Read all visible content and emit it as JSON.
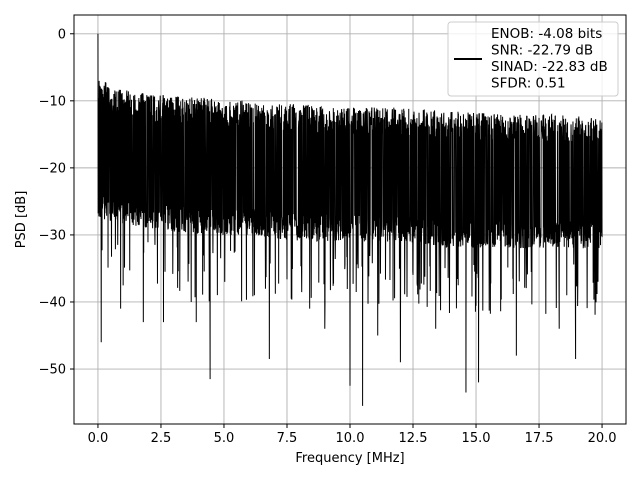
{
  "chart_data": {
    "type": "line",
    "title": "",
    "xlabel": "Frequency [MHz]",
    "ylabel": "PSD [dB]",
    "xlim": [
      -0.95,
      20.95
    ],
    "ylim": [
      -58.2,
      2.8
    ],
    "xticks": [
      0.0,
      2.5,
      5.0,
      7.5,
      10.0,
      12.5,
      15.0,
      17.5,
      20.0
    ],
    "xtick_labels": [
      "0.0",
      "2.5",
      "5.0",
      "7.5",
      "10.0",
      "12.5",
      "15.0",
      "17.5",
      "20.0"
    ],
    "yticks": [
      0,
      -10,
      -20,
      -30,
      -40,
      -50
    ],
    "ytick_labels": [
      "0",
      "−10",
      "−20",
      "−30",
      "−40",
      "−50"
    ],
    "grid": true,
    "legend_position": "top-right",
    "series": [
      {
        "name": "ENOB: -4.08 bits\nSNR: -22.79 dB\nSINAD: -22.83 dB\nSFDR: 0.51",
        "color": "#000000",
        "peak": {
          "x": 0.0,
          "y": 0.0
        },
        "envelope_approx": {
          "x": [
            0,
            0.5,
            2,
            4,
            6,
            8,
            10,
            12,
            14,
            16,
            18,
            20
          ],
          "upper": [
            -6,
            -8,
            -9,
            -9.5,
            -10,
            -10.5,
            -11,
            -11,
            -11.5,
            -12,
            -12,
            -12.5
          ],
          "lower": [
            -28,
            -28,
            -29,
            -30,
            -30,
            -31,
            -31,
            -31,
            -32,
            -32,
            -32,
            -32
          ]
        },
        "notable_minima": [
          {
            "x": 0.13,
            "y": -46
          },
          {
            "x": 0.9,
            "y": -41
          },
          {
            "x": 1.8,
            "y": -43
          },
          {
            "x": 2.6,
            "y": -43
          },
          {
            "x": 3.7,
            "y": -40
          },
          {
            "x": 3.9,
            "y": -43
          },
          {
            "x": 4.45,
            "y": -51.5
          },
          {
            "x": 6.8,
            "y": -48.5
          },
          {
            "x": 8.4,
            "y": -41
          },
          {
            "x": 9.0,
            "y": -44
          },
          {
            "x": 10.0,
            "y": -52.5
          },
          {
            "x": 10.5,
            "y": -55.5
          },
          {
            "x": 11.1,
            "y": -45
          },
          {
            "x": 12.0,
            "y": -49
          },
          {
            "x": 13.4,
            "y": -44
          },
          {
            "x": 14.6,
            "y": -53.5
          },
          {
            "x": 15.1,
            "y": -52
          },
          {
            "x": 16.6,
            "y": -48
          },
          {
            "x": 18.3,
            "y": -44
          },
          {
            "x": 18.95,
            "y": -48.5
          }
        ]
      }
    ]
  }
}
